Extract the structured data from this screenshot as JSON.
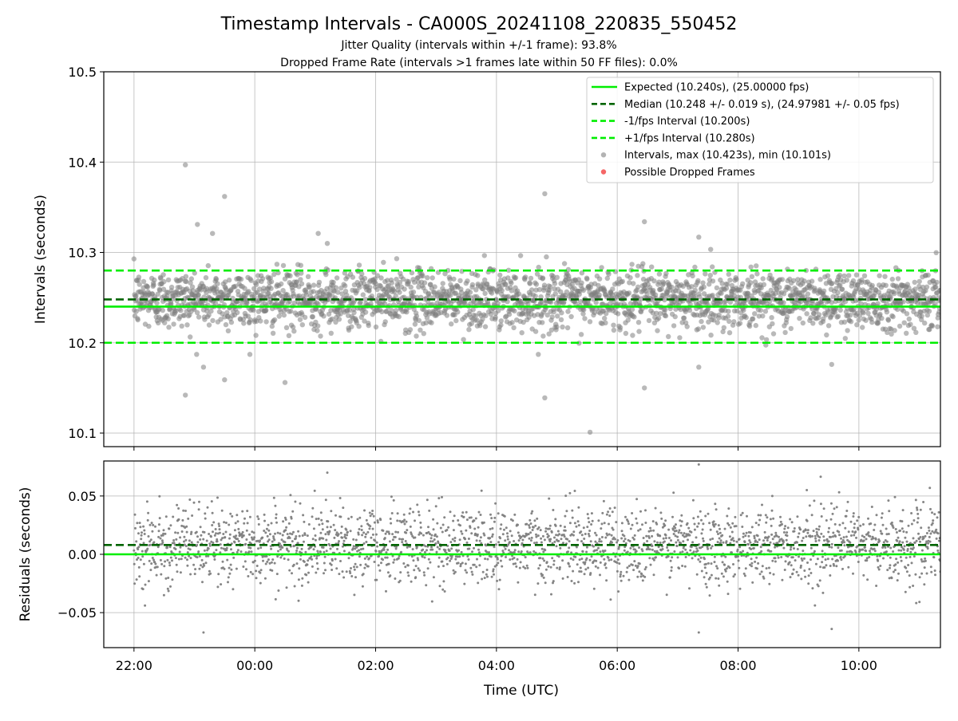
{
  "title": "Timestamp Intervals - CA000S_20241108_220835_550452",
  "subtitle_1": "Jitter Quality (intervals within +/-1 frame): 93.8%",
  "subtitle_2": "Dropped Frame Rate (intervals >1 frames late within 50 FF files): 0.0%",
  "colors": {
    "expected": "#00ee00",
    "median": "#006400",
    "interval_band": "#00ee00",
    "points": "#808080",
    "dropped": "#ee0000",
    "grid": "#b0b0b0"
  },
  "chart_data": [
    {
      "type": "scatter",
      "ylabel": "Intervals (seconds)",
      "ylim": [
        10.085,
        10.5
      ],
      "yticks": [
        10.1,
        10.2,
        10.3,
        10.4,
        10.5
      ],
      "ytick_labels": [
        "10.1",
        "10.2",
        "10.3",
        "10.4",
        "10.5"
      ],
      "xlim_hours": [
        -2.5,
        11.35
      ],
      "grid": true,
      "legend_placement": "upper right",
      "reference_lines": [
        {
          "name": "Expected (10.240s), (25.00000 fps)",
          "value": 10.24,
          "style": "solid",
          "color": "#00ee00"
        },
        {
          "name": "Median (10.248 +/- 0.019 s), (24.97981 +/- 0.05 fps)",
          "value": 10.248,
          "style": "dashed",
          "color": "#006400"
        },
        {
          "name": "-1/fps Interval (10.200s)",
          "value": 10.2,
          "style": "dashed",
          "color": "#00ee00"
        },
        {
          "name": "+1/fps Interval (10.280s)",
          "value": 10.28,
          "style": "dashed",
          "color": "#00ee00"
        }
      ],
      "series": [
        {
          "name": "Intervals, max (10.423s), min (10.101s)",
          "marker": "circle",
          "color": "#808080",
          "x_range_hours": [
            -2.0,
            11.35
          ],
          "center": 10.248,
          "std": 0.019,
          "count": 2500,
          "outliers": [
            {
              "x": -1.15,
              "y": 10.397
            },
            {
              "x": -1.15,
              "y": 10.142
            },
            {
              "x": -0.5,
              "y": 10.362
            },
            {
              "x": -0.5,
              "y": 10.159
            },
            {
              "x": -0.95,
              "y": 10.331
            },
            {
              "x": -0.7,
              "y": 10.321
            },
            {
              "x": -0.85,
              "y": 10.173
            },
            {
              "x": 0.5,
              "y": 10.156
            },
            {
              "x": 1.2,
              "y": 10.31
            },
            {
              "x": 4.8,
              "y": 10.365
            },
            {
              "x": 4.8,
              "y": 10.139
            },
            {
              "x": 5.55,
              "y": 10.101
            },
            {
              "x": 6.45,
              "y": 10.334
            },
            {
              "x": 6.45,
              "y": 10.15
            },
            {
              "x": 7.35,
              "y": 10.317
            },
            {
              "x": 7.35,
              "y": 10.173
            },
            {
              "x": 9.55,
              "y": 10.176
            },
            {
              "x": 1.05,
              "y": 10.321
            }
          ]
        },
        {
          "name": "Possible Dropped Frames",
          "marker": "circle",
          "color": "#ee0000",
          "values": []
        }
      ]
    },
    {
      "type": "scatter",
      "ylabel": "Residuals (seconds)",
      "xlabel": "Time (UTC)",
      "ylim": [
        -0.08,
        0.08
      ],
      "yticks": [
        -0.05,
        0.0,
        0.05
      ],
      "ytick_labels": [
        "−0.05",
        "0.00",
        "0.05"
      ],
      "xlim_hours": [
        -2.5,
        11.35
      ],
      "xticks_hours": [
        -2,
        0,
        2,
        4,
        6,
        8,
        10
      ],
      "xtick_labels": [
        "22:00",
        "00:00",
        "02:00",
        "04:00",
        "06:00",
        "08:00",
        "10:00"
      ],
      "grid": true,
      "reference_lines": [
        {
          "value": 0.0,
          "style": "solid",
          "color": "#00ee00"
        },
        {
          "value": 0.008,
          "style": "dashed",
          "color": "#006400"
        }
      ],
      "series": [
        {
          "marker": "dot",
          "color": "#808080",
          "x_range_hours": [
            -2.0,
            11.35
          ],
          "center": 0.008,
          "std": 0.019,
          "count": 2500
        }
      ]
    }
  ]
}
